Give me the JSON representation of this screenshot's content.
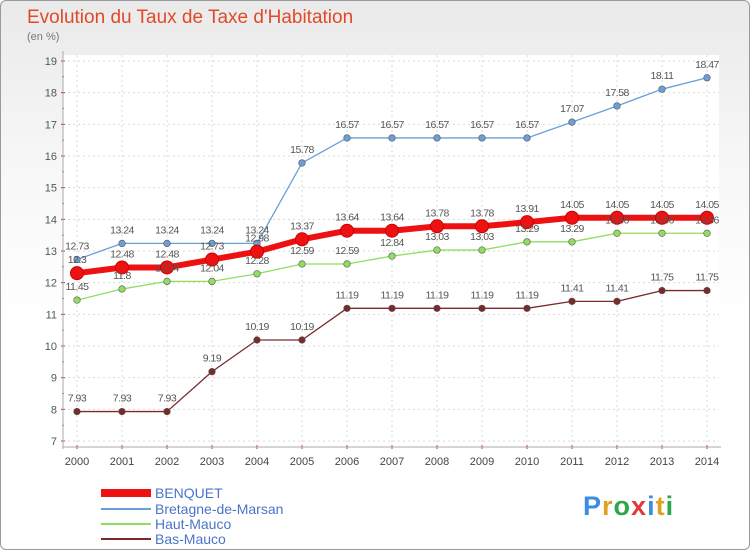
{
  "header": {
    "title": "Evolution du Taux de Taxe d'Habitation",
    "subtitle": "(en %)"
  },
  "logo": {
    "text": "Proxiti"
  },
  "chart_data": {
    "type": "line",
    "title": "Evolution du Taux de Taxe d'Habitation",
    "ylabel": "(en %)",
    "x": [
      "2000",
      "2001",
      "2002",
      "2003",
      "2004",
      "2005",
      "2006",
      "2007",
      "2008",
      "2009",
      "2010",
      "2011",
      "2012",
      "2013",
      "2014"
    ],
    "ylim": [
      7,
      19
    ],
    "yticks": [
      7,
      8,
      9,
      10,
      11,
      12,
      13,
      14,
      15,
      16,
      17,
      18,
      19
    ],
    "grid": true,
    "legend_position": "bottom-left",
    "series": [
      {
        "name": "BENQUET",
        "color": "#ee1111",
        "values": [
          12.3,
          12.48,
          12.48,
          12.73,
          12.98,
          13.37,
          13.64,
          13.64,
          13.78,
          13.78,
          13.91,
          14.05,
          14.05,
          14.05,
          14.05
        ],
        "labels": [
          "12.3",
          "12.48",
          "12.48",
          "12.73",
          "12.98",
          "13.37",
          "13.64",
          "13.64",
          "13.78",
          "13.78",
          "13.91",
          "14.05",
          "14.05",
          "14.05",
          "14.05"
        ]
      },
      {
        "name": "Bretagne-de-Marsan",
        "color": "#6b9fd8",
        "values": [
          12.73,
          13.24,
          13.24,
          13.24,
          13.24,
          15.78,
          16.57,
          16.57,
          16.57,
          16.57,
          16.57,
          17.07,
          17.58,
          18.11,
          18.47
        ],
        "labels": [
          "12.73",
          "13.24",
          "13.24",
          "13.24",
          "13.24",
          "15.78",
          "16.57",
          "16.57",
          "16.57",
          "16.57",
          "16.57",
          "17.07",
          "17.58",
          "18.11",
          "18.47"
        ]
      },
      {
        "name": "Haut-Mauco",
        "color": "#90dd60",
        "values": [
          11.45,
          11.8,
          12.04,
          12.04,
          12.28,
          12.59,
          12.59,
          12.84,
          13.03,
          13.03,
          13.29,
          13.29,
          13.56,
          13.56,
          13.56
        ],
        "labels": [
          "11.45",
          "11.8",
          "12.04",
          "12.04",
          "12.28",
          "12.59",
          "12.59",
          "12.84",
          "13.03",
          "13.03",
          "13.29",
          "13.29",
          "13.56",
          "13.56",
          "13.56"
        ]
      },
      {
        "name": "Bas-Mauco",
        "color": "#7a2a2a",
        "values": [
          7.93,
          7.93,
          7.93,
          9.19,
          10.19,
          10.19,
          11.19,
          11.19,
          11.19,
          11.19,
          11.19,
          11.41,
          11.41,
          11.75,
          11.75
        ],
        "labels": [
          "7.93",
          "7.93",
          "7.93",
          "9.19",
          "10.19",
          "10.19",
          "11.19",
          "11.19",
          "11.19",
          "11.19",
          "11.19",
          "11.41",
          "11.41",
          "11.75",
          "11.75"
        ]
      }
    ]
  }
}
